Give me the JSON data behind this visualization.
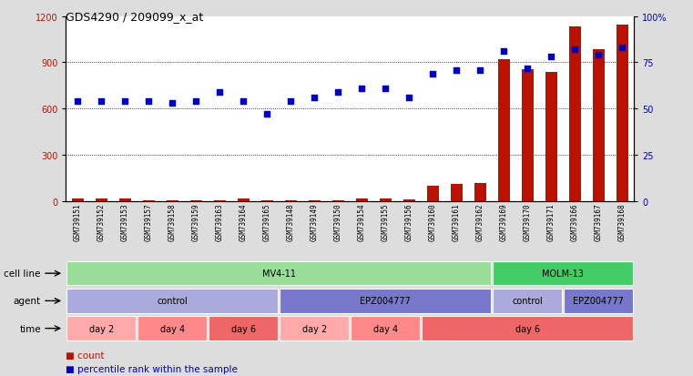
{
  "title": "GDS4290 / 209099_x_at",
  "samples": [
    "GSM739151",
    "GSM739152",
    "GSM739153",
    "GSM739157",
    "GSM739158",
    "GSM739159",
    "GSM739163",
    "GSM739164",
    "GSM739165",
    "GSM739148",
    "GSM739149",
    "GSM739150",
    "GSM739154",
    "GSM739155",
    "GSM739156",
    "GSM739160",
    "GSM739161",
    "GSM739162",
    "GSM739169",
    "GSM739170",
    "GSM739171",
    "GSM739166",
    "GSM739167",
    "GSM739168"
  ],
  "counts": [
    18,
    15,
    18,
    8,
    8,
    8,
    8,
    18,
    8,
    8,
    8,
    8,
    18,
    20,
    12,
    100,
    110,
    115,
    920,
    855,
    840,
    1130,
    985,
    1145
  ],
  "percentile": [
    54,
    54,
    54,
    54,
    53,
    54,
    59,
    54,
    47,
    54,
    56,
    59,
    61,
    61,
    56,
    69,
    71,
    71,
    81,
    72,
    78,
    82,
    79,
    83
  ],
  "cell_line_groups": [
    {
      "label": "MV4-11",
      "start": 0,
      "end": 18,
      "color": "#99DD99"
    },
    {
      "label": "MOLM-13",
      "start": 18,
      "end": 24,
      "color": "#44CC66"
    }
  ],
  "agent_groups": [
    {
      "label": "control",
      "start": 0,
      "end": 9,
      "color": "#AAAADD"
    },
    {
      "label": "EPZ004777",
      "start": 9,
      "end": 18,
      "color": "#7777CC"
    },
    {
      "label": "control",
      "start": 18,
      "end": 21,
      "color": "#AAAADD"
    },
    {
      "label": "EPZ004777",
      "start": 21,
      "end": 24,
      "color": "#7777CC"
    }
  ],
  "time_groups": [
    {
      "label": "day 2",
      "start": 0,
      "end": 3,
      "color": "#FFAAAA"
    },
    {
      "label": "day 4",
      "start": 3,
      "end": 6,
      "color": "#FF8888"
    },
    {
      "label": "day 6",
      "start": 6,
      "end": 9,
      "color": "#EE6666"
    },
    {
      "label": "day 2",
      "start": 9,
      "end": 12,
      "color": "#FFAAAA"
    },
    {
      "label": "day 4",
      "start": 12,
      "end": 15,
      "color": "#FF8888"
    },
    {
      "label": "day 6",
      "start": 15,
      "end": 24,
      "color": "#EE6666"
    }
  ],
  "ylim_left": [
    0,
    1200
  ],
  "ylim_right": [
    0,
    100
  ],
  "yticks_left": [
    0,
    300,
    600,
    900,
    1200
  ],
  "yticks_right": [
    0,
    25,
    50,
    75,
    100
  ],
  "bar_color": "#BB1100",
  "dot_color": "#0000BB",
  "bg_color": "#DDDDDD",
  "plot_bg": "#FFFFFF",
  "xlabel_bg": "#CCCCCC",
  "title_fontsize": 9,
  "tick_fontsize": 7,
  "sample_fontsize": 5.5
}
